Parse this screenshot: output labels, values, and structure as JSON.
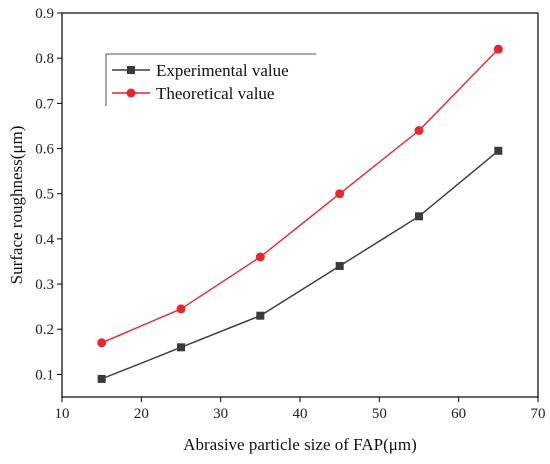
{
  "chart_data": {
    "type": "line",
    "title": "",
    "xlabel": "Abrasive particle size of FAP(μm)",
    "ylabel": "Surface roughness(μm)",
    "xlim": [
      10,
      70
    ],
    "ylim": [
      0.05,
      0.9
    ],
    "x_ticks": [
      10,
      20,
      30,
      40,
      50,
      60,
      70
    ],
    "y_ticks": [
      0.1,
      0.2,
      0.3,
      0.4,
      0.5,
      0.6,
      0.7,
      0.8,
      0.9
    ],
    "grid": false,
    "legend_position": "top-left",
    "x": [
      15,
      25,
      35,
      45,
      55,
      65
    ],
    "series": [
      {
        "name": "Experimental value",
        "values": [
          0.09,
          0.16,
          0.23,
          0.34,
          0.45,
          0.595
        ],
        "color": "#3a3a3a",
        "marker": "square"
      },
      {
        "name": "Theoretical value",
        "values": [
          0.17,
          0.245,
          0.36,
          0.5,
          0.64,
          0.82
        ],
        "color": "#e8262b",
        "marker": "circle"
      }
    ]
  }
}
